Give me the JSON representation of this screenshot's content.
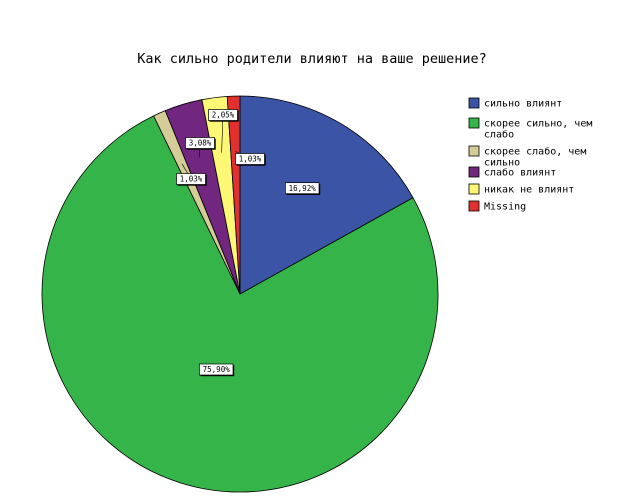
{
  "chart_data": {
    "type": "pie",
    "title": "Как сильно родители влияют на ваше решение?",
    "categories": [
      "сильно влиянт",
      "скорее сильно, чем слабо",
      "скорее слабо, чем сильно",
      "слабо влиянт",
      "никак не влиянт",
      "Missing"
    ],
    "legend": [
      [
        "сильно влиянт"
      ],
      [
        "скорее сильно, чем",
        "слабо"
      ],
      [
        "скорее слабо, чем",
        "сильно"
      ],
      [
        "слабо влиянт"
      ],
      [
        "никак не влиянт"
      ],
      [
        "Missing"
      ]
    ],
    "values": [
      16.92,
      75.9,
      1.03,
      3.08,
      2.05,
      1.03
    ],
    "labels": [
      "16,92%",
      "75,90%",
      "1,03%",
      "3,08%",
      "2,05%",
      "1,03%"
    ],
    "colors": [
      "#3b54a6",
      "#35b44a",
      "#d5cd98",
      "#71267f",
      "#fcf775",
      "#e1302d"
    ],
    "legend_position": "right"
  }
}
